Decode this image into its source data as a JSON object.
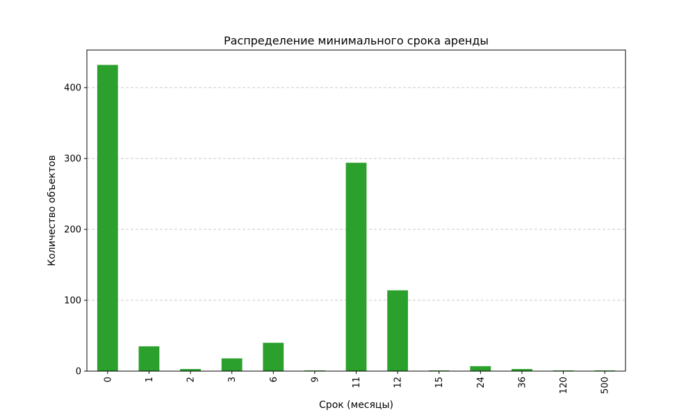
{
  "chart_data": {
    "type": "bar",
    "title": "Распределение минимального срока аренды",
    "xlabel": "Срок (месяцы)",
    "ylabel": "Количество объектов",
    "categories": [
      "0",
      "1",
      "2",
      "3",
      "6",
      "9",
      "11",
      "12",
      "15",
      "24",
      "36",
      "120",
      "500"
    ],
    "values": [
      432,
      35,
      3,
      18,
      40,
      1,
      294,
      114,
      1,
      7,
      3,
      1,
      1
    ],
    "ylim": [
      0,
      453
    ],
    "yticks": [
      "0",
      "100",
      "200",
      "300",
      "400"
    ],
    "grid": "y-dashed",
    "bar_color": "#2ca02c",
    "grid_color": "#c8c8c8"
  }
}
